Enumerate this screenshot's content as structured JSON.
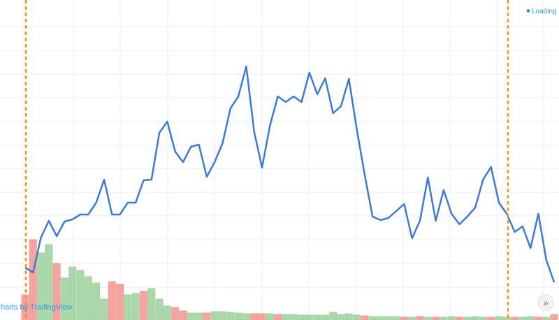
{
  "status": "Loading",
  "attribution": "Charts by TradingView",
  "scroll_button": "»",
  "chart_data": {
    "type": "line",
    "series": [
      {
        "color": "#3d7bd0",
        "values": [
          75,
          68,
          118,
          142,
          120,
          141,
          144,
          151,
          151,
          168,
          201,
          151,
          151,
          168,
          168,
          200,
          201,
          268,
          284,
          241,
          226,
          248,
          251,
          205,
          226,
          253,
          303,
          320,
          363,
          270,
          218,
          278,
          320,
          312,
          320,
          312,
          354,
          323,
          346,
          296,
          306,
          345,
          273,
          208,
          148,
          143,
          146,
          156,
          166,
          117,
          142,
          204,
          142,
          186,
          152,
          137,
          148,
          161,
          201,
          219,
          168,
          152,
          126,
          134,
          103,
          152,
          86,
          54
        ]
      }
    ],
    "ylim": [
      0,
      458
    ],
    "volume": {
      "type": "bar",
      "values": [
        36,
        115,
        96,
        108,
        81,
        60,
        76,
        71,
        62,
        53,
        30,
        55,
        51,
        36,
        38,
        41,
        45,
        30,
        20,
        18,
        13,
        10,
        10,
        10,
        12,
        12,
        11,
        10,
        9,
        9,
        9,
        9,
        8,
        8,
        8,
        7,
        7,
        7,
        7,
        11,
        8,
        9,
        7,
        6,
        5,
        5,
        5,
        5,
        4,
        4,
        5,
        4,
        4,
        4,
        5,
        4,
        4,
        5,
        4,
        4,
        5,
        4,
        4,
        4,
        5,
        4,
        4,
        8
      ],
      "colors": [
        "#f5948f",
        "#f5948f",
        "#9bd19b",
        "#9bd19b",
        "#f5948f",
        "#9bd19b",
        "#9bd19b",
        "#9bd19b",
        "#9bd19b",
        "#9bd19b",
        "#9bd19b",
        "#f5948f",
        "#f5948f",
        "#9bd19b",
        "#9bd19b",
        "#f5948f",
        "#9bd19b",
        "#9bd19b",
        "#9bd19b",
        "#f5948f",
        "#f5948f",
        "#9bd19b",
        "#9bd19b",
        "#f5948f",
        "#9bd19b",
        "#9bd19b",
        "#9bd19b",
        "#9bd19b",
        "#9bd19b",
        "#f5948f",
        "#f5948f",
        "#9bd19b",
        "#f5948f",
        "#9bd19b",
        "#9bd19b",
        "#9bd19b",
        "#9bd19b",
        "#9bd19b",
        "#9bd19b",
        "#9bd19b",
        "#9bd19b",
        "#9bd19b",
        "#9bd19b",
        "#f5948f",
        "#9bd19b",
        "#9bd19b",
        "#9bd19b",
        "#9bd19b",
        "#f5948f",
        "#9bd19b",
        "#f5948f",
        "#9bd19b",
        "#f5948f",
        "#9bd19b",
        "#9bd19b",
        "#f5948f",
        "#9bd19b",
        "#9bd19b",
        "#9bd19b",
        "#f5948f",
        "#9bd19b",
        "#9bd19b",
        "#f5948f",
        "#9bd19b",
        "#9bd19b",
        "#f5948f",
        "#9bd19b",
        "#f5948f"
      ],
      "ylim": [
        0,
        458
      ]
    }
  }
}
